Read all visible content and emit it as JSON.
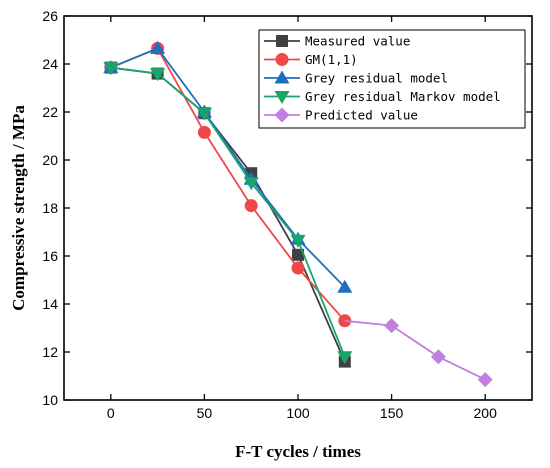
{
  "chart_data": {
    "type": "line",
    "xlabel": "F-T cycles / times",
    "ylabel": "Compressive strength / MPa",
    "xlim": [
      -25,
      225
    ],
    "ylim": [
      10,
      26
    ],
    "xticks": [
      0,
      50,
      100,
      150,
      200
    ],
    "yticks": [
      10,
      12,
      14,
      16,
      18,
      20,
      22,
      24,
      26
    ],
    "legend_position": "top-right",
    "grid": false,
    "series": [
      {
        "name": "Measured value",
        "color": "#404040",
        "marker": "square",
        "x": [
          0,
          25,
          50,
          75,
          100,
          125
        ],
        "y": [
          23.85,
          23.6,
          21.95,
          19.45,
          16.05,
          11.6
        ]
      },
      {
        "name": "GM(1,1)",
        "color": "#f04848",
        "marker": "circle",
        "x": [
          0,
          25,
          50,
          75,
          100,
          125
        ],
        "y": [
          23.85,
          24.65,
          21.15,
          18.1,
          15.5,
          13.3
        ]
      },
      {
        "name": "Grey residual model",
        "color": "#1f6fbf",
        "marker": "triangle-up",
        "x": [
          0,
          25,
          50,
          75,
          100,
          125
        ],
        "y": [
          23.85,
          24.65,
          22.0,
          19.2,
          16.7,
          14.7
        ]
      },
      {
        "name": "Grey residual Markov model",
        "color": "#1aa36a",
        "marker": "triangle-down",
        "x": [
          0,
          25,
          50,
          75,
          100,
          125
        ],
        "y": [
          23.85,
          23.6,
          21.95,
          19.05,
          16.65,
          11.8
        ]
      },
      {
        "name": "Predicted value",
        "color": "#c27ee0",
        "marker": "diamond",
        "x": [
          125,
          150,
          175,
          200
        ],
        "y": [
          13.3,
          13.1,
          11.8,
          10.85
        ],
        "marker_skip_first": true
      }
    ]
  }
}
